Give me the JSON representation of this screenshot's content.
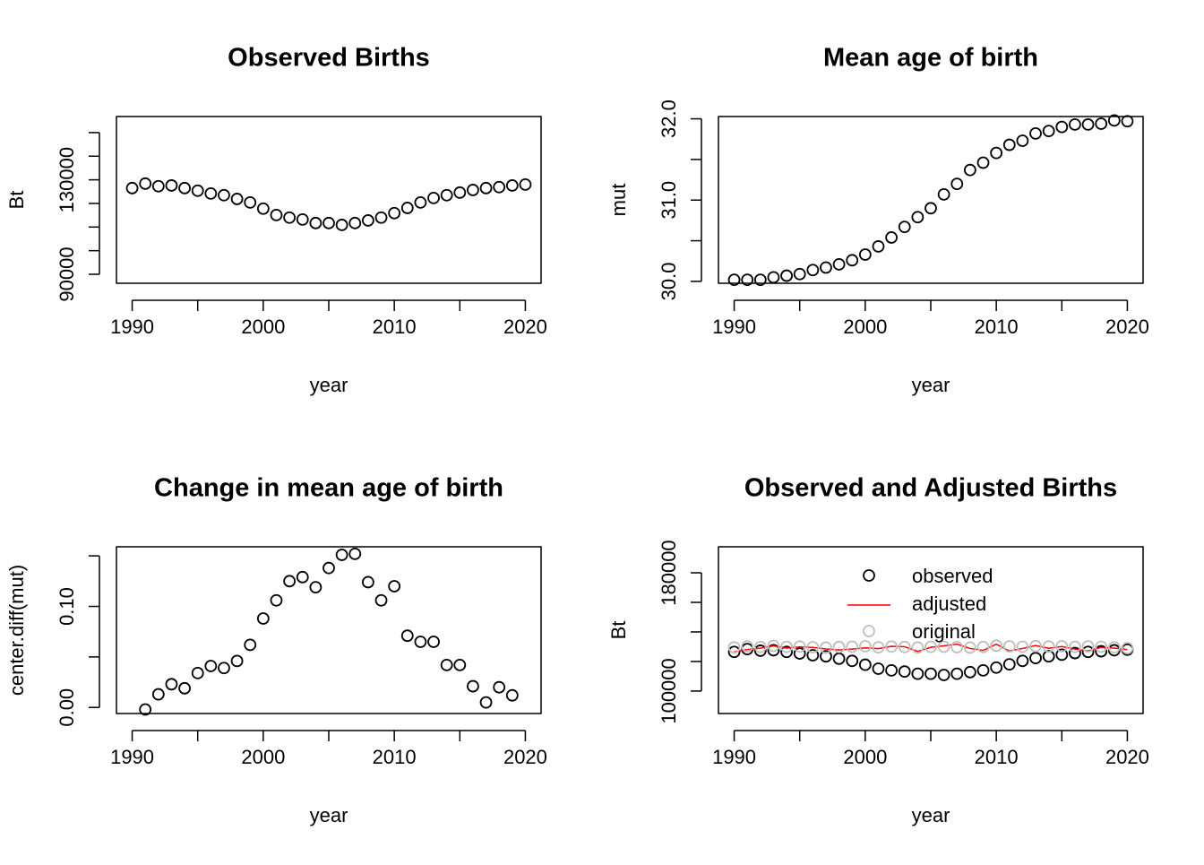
{
  "chart_data": [
    {
      "type": "scatter",
      "title": "Observed Births",
      "xlabel": "year",
      "ylabel": "Bt",
      "color": "#000000",
      "x": [
        1990,
        1991,
        1992,
        1993,
        1994,
        1995,
        1996,
        1997,
        1998,
        1999,
        2000,
        2001,
        2002,
        2003,
        2004,
        2005,
        2006,
        2007,
        2008,
        2009,
        2010,
        2011,
        2012,
        2013,
        2014,
        2015,
        2016,
        2017,
        2018,
        2019,
        2020
      ],
      "values": [
        126500,
        128400,
        127300,
        127600,
        126500,
        125400,
        124200,
        123500,
        121900,
        120400,
        117800,
        115100,
        114000,
        113200,
        111700,
        111700,
        110900,
        111700,
        112800,
        114000,
        115900,
        118100,
        120400,
        122300,
        123500,
        124600,
        125700,
        126500,
        126900,
        127600,
        128000
      ],
      "xlim": [
        1988.8,
        2021.2
      ],
      "ylim": [
        86200,
        156800
      ],
      "xticks": [
        1990,
        1995,
        2000,
        2005,
        2010,
        2015,
        2020
      ],
      "yticks": [
        90000,
        100000,
        110000,
        120000,
        130000,
        140000,
        150000
      ]
    },
    {
      "type": "scatter",
      "title": "Mean age of birth",
      "xlabel": "year",
      "ylabel": "mut",
      "color": "#000000",
      "x": [
        1990,
        1991,
        1992,
        1993,
        1994,
        1995,
        1996,
        1997,
        1998,
        1999,
        2000,
        2001,
        2002,
        2003,
        2004,
        2005,
        2006,
        2007,
        2008,
        2009,
        2010,
        2011,
        2012,
        2013,
        2014,
        2015,
        2016,
        2017,
        2018,
        2019,
        2020
      ],
      "values": [
        30.02,
        30.02,
        30.02,
        30.05,
        30.07,
        30.09,
        30.14,
        30.17,
        30.21,
        30.26,
        30.33,
        30.43,
        30.54,
        30.67,
        30.79,
        30.9,
        31.07,
        31.2,
        31.37,
        31.46,
        31.58,
        31.68,
        31.73,
        31.82,
        31.85,
        31.9,
        31.93,
        31.93,
        31.94,
        31.98,
        31.97
      ],
      "xlim": [
        1988.8,
        2021.2
      ],
      "ylim": [
        29.977,
        32.028
      ],
      "xticks": [
        1990,
        1995,
        2000,
        2005,
        2010,
        2015,
        2020
      ],
      "yticks": [
        {
          "value": 30,
          "label": "30.0"
        },
        30.5,
        {
          "value": 31,
          "label": "31.0"
        },
        31.5,
        {
          "value": 32,
          "label": "32.0"
        }
      ]
    },
    {
      "type": "scatter",
      "title": "Change in mean age of birth",
      "xlabel": "year",
      "ylabel": "center.diff(mut)",
      "color": "#000000",
      "x": [
        1991,
        1992,
        1993,
        1994,
        1995,
        1996,
        1997,
        1998,
        1999,
        2000,
        2001,
        2002,
        2003,
        2004,
        2005,
        2006,
        2007,
        2008,
        2009,
        2010,
        2011,
        2012,
        2013,
        2014,
        2015,
        2016,
        2017,
        2018,
        2019
      ],
      "values": [
        -0.002,
        0.013,
        0.023,
        0.019,
        0.034,
        0.041,
        0.039,
        0.046,
        0.062,
        0.088,
        0.106,
        0.125,
        0.129,
        0.119,
        0.138,
        0.151,
        0.152,
        0.124,
        0.106,
        0.12,
        0.071,
        0.065,
        0.065,
        0.042,
        0.042,
        0.021,
        0.005,
        0.02,
        0.012
      ],
      "xlim": [
        1988.8,
        2021.2
      ],
      "ylim": [
        -0.006,
        0.159
      ],
      "xticks": [
        1990,
        1995,
        2000,
        2005,
        2010,
        2015,
        2020
      ],
      "yticks": [
        {
          "value": 0,
          "label": "0.00"
        },
        0.05,
        {
          "value": 0.1,
          "label": "0.10"
        },
        0.15
      ]
    },
    {
      "type": "scatter",
      "title": "Observed and Adjusted Births",
      "xlabel": "year",
      "ylabel": "Bt",
      "legend": "top",
      "x": [
        1990,
        1991,
        1992,
        1993,
        1994,
        1995,
        1996,
        1997,
        1998,
        1999,
        2000,
        2001,
        2002,
        2003,
        2004,
        2005,
        2006,
        2007,
        2008,
        2009,
        2010,
        2011,
        2012,
        2013,
        2014,
        2015,
        2016,
        2017,
        2018,
        2019,
        2020
      ],
      "series": [
        {
          "name": "observed",
          "color": "#000000",
          "mark": "point",
          "values": [
            126500,
            128400,
            127300,
            127600,
            126500,
            125400,
            124200,
            123500,
            121900,
            120400,
            117800,
            115100,
            114000,
            113200,
            111700,
            111700,
            110900,
            111700,
            112800,
            114000,
            115900,
            118100,
            120400,
            122300,
            123500,
            124600,
            125700,
            126500,
            126900,
            127600,
            128000
          ]
        },
        {
          "name": "adjusted",
          "color": "#ff0000",
          "mark": "line",
          "values": [
            126500,
            128100,
            129000,
            130600,
            129000,
            129800,
            129500,
            128500,
            127800,
            128400,
            129200,
            128700,
            130300,
            130000,
            126800,
            129600,
            130600,
            131700,
            128800,
            127500,
            131700,
            127100,
            128800,
            130800,
            128900,
            130100,
            128400,
            127100,
            129500,
            129100,
            128000
          ]
        },
        {
          "name": "original",
          "color": "#bebebe",
          "mark": "point",
          "values": [
            129500,
            130200,
            129800,
            130600,
            129900,
            130100,
            129700,
            129400,
            129800,
            130000,
            130300,
            129600,
            130100,
            129800,
            129500,
            129900,
            130000,
            129700,
            129400,
            129800,
            130700,
            130200,
            130000,
            130400,
            130100,
            130300,
            129900,
            130200,
            130000,
            129600,
            129000
          ]
        }
      ],
      "xlim": [
        1988.8,
        2021.2
      ],
      "ylim": [
        84800,
        197600
      ],
      "xticks": [
        1990,
        1995,
        2000,
        2005,
        2010,
        2015,
        2020
      ],
      "yticks": [
        100000,
        120000,
        140000,
        160000,
        180000
      ]
    }
  ]
}
